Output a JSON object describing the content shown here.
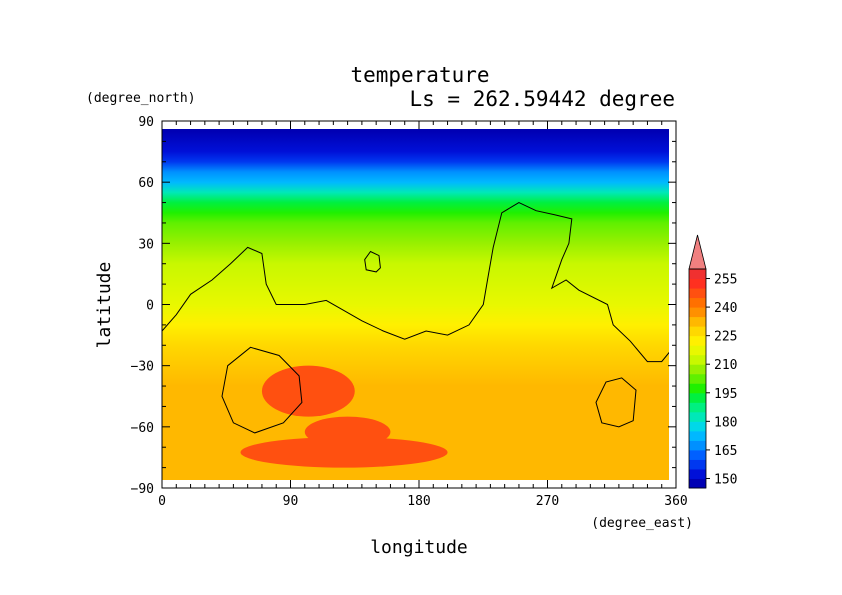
{
  "chart_data": {
    "type": "heatmap",
    "title": "temperature",
    "subtitle": "Ls = 262.59442 degree",
    "xlabel": "longitude",
    "ylabel": "latitude",
    "x_units": "(degree_east)",
    "y_units": "(degree_north)",
    "xlim": [
      0,
      360
    ],
    "ylim": [
      -90,
      90
    ],
    "x_ticks": [
      0,
      90,
      180,
      270,
      360
    ],
    "y_ticks": [
      90,
      60,
      30,
      0,
      -30,
      -60,
      -90
    ],
    "x_tick_labels": [
      "0",
      "90",
      "180",
      "270",
      "360"
    ],
    "y_tick_labels": [
      "90",
      "60",
      "30",
      "0",
      "−30",
      "−60",
      "−90"
    ],
    "colorbar": {
      "levels": [
        145,
        150,
        155,
        160,
        165,
        170,
        175,
        180,
        185,
        190,
        195,
        200,
        205,
        210,
        215,
        220,
        225,
        230,
        235,
        240,
        245,
        250,
        255,
        260
      ],
      "tick_values": [
        150,
        165,
        180,
        195,
        210,
        225,
        240,
        255
      ],
      "tick_labels": [
        "150",
        "165",
        "180",
        "195",
        "210",
        "225",
        "240",
        "255"
      ],
      "colors": [
        "#0000b4",
        "#0010d8",
        "#0038f0",
        "#0060ff",
        "#0090ff",
        "#00b8ff",
        "#00d8e8",
        "#00e8b8",
        "#00f080",
        "#00f040",
        "#20f000",
        "#60f000",
        "#98f000",
        "#c8f800",
        "#e8f800",
        "#fff000",
        "#ffd800",
        "#ffb800",
        "#ff9000",
        "#ff7000",
        "#ff5010",
        "#ff3020",
        "#f03030",
        "#f08080"
      ],
      "extend_max_color": "#f08080"
    },
    "latitude_profile": [
      {
        "lat": 85,
        "temp": 147
      },
      {
        "lat": 75,
        "temp": 150
      },
      {
        "lat": 70,
        "temp": 158
      },
      {
        "lat": 65,
        "temp": 166
      },
      {
        "lat": 60,
        "temp": 174
      },
      {
        "lat": 55,
        "temp": 182
      },
      {
        "lat": 50,
        "temp": 190
      },
      {
        "lat": 45,
        "temp": 196
      },
      {
        "lat": 40,
        "temp": 202
      },
      {
        "lat": 30,
        "temp": 207
      },
      {
        "lat": 20,
        "temp": 212
      },
      {
        "lat": 0,
        "temp": 217
      },
      {
        "lat": -10,
        "temp": 222
      },
      {
        "lat": -20,
        "temp": 227
      },
      {
        "lat": -40,
        "temp": 232
      },
      {
        "lat": -60,
        "temp": 232
      },
      {
        "lat": -85,
        "temp": 230
      }
    ],
    "warm_regions_245": [
      {
        "lon": [
          70,
          135
        ],
        "lat": [
          -30,
          -55
        ],
        "temp": 247
      },
      {
        "lon": [
          100,
          160
        ],
        "lat": [
          -55,
          -70
        ],
        "temp": 247
      },
      {
        "lon": [
          55,
          200
        ],
        "lat": [
          -65,
          -80
        ],
        "temp": 247
      }
    ],
    "contour_level": 212,
    "contour_lines": [
      {
        "name": "main-contour",
        "points": [
          [
            0,
            -13
          ],
          [
            10,
            -5
          ],
          [
            20,
            5
          ],
          [
            35,
            12
          ],
          [
            48,
            20
          ],
          [
            60,
            28
          ],
          [
            70,
            25
          ],
          [
            73,
            10
          ],
          [
            80,
            0
          ],
          [
            100,
            0
          ],
          [
            115,
            2
          ],
          [
            125,
            -2
          ],
          [
            140,
            -8
          ],
          [
            155,
            -13
          ],
          [
            170,
            -17
          ],
          [
            185,
            -13
          ],
          [
            200,
            -15
          ],
          [
            215,
            -10
          ],
          [
            225,
            0
          ],
          [
            228,
            12
          ],
          [
            232,
            28
          ],
          [
            238,
            45
          ],
          [
            250,
            50
          ],
          [
            262,
            46
          ],
          [
            275,
            44
          ],
          [
            287,
            42
          ],
          [
            285,
            30
          ],
          [
            280,
            22
          ],
          [
            273,
            8
          ],
          [
            283,
            12
          ],
          [
            292,
            7
          ],
          [
            312,
            0
          ],
          [
            316,
            -10
          ],
          [
            328,
            -18
          ],
          [
            340,
            -28
          ],
          [
            350,
            -28
          ],
          [
            357,
            -22
          ]
        ]
      },
      {
        "name": "small-contour-north",
        "closed": true,
        "points": [
          [
            142,
            22
          ],
          [
            146,
            26
          ],
          [
            152,
            24
          ],
          [
            153,
            18
          ],
          [
            150,
            16
          ],
          [
            143,
            17
          ]
        ]
      },
      {
        "name": "west-contour-south",
        "closed": true,
        "points": [
          [
            42,
            -45
          ],
          [
            46,
            -30
          ],
          [
            62,
            -21
          ],
          [
            82,
            -25
          ],
          [
            96,
            -35
          ],
          [
            98,
            -48
          ],
          [
            85,
            -58
          ],
          [
            65,
            -63
          ],
          [
            50,
            -58
          ]
        ]
      },
      {
        "name": "east-contour-south",
        "closed": true,
        "points": [
          [
            304,
            -48
          ],
          [
            311,
            -38
          ],
          [
            322,
            -36
          ],
          [
            332,
            -42
          ],
          [
            330,
            -57
          ],
          [
            320,
            -60
          ],
          [
            308,
            -58
          ]
        ]
      }
    ]
  }
}
